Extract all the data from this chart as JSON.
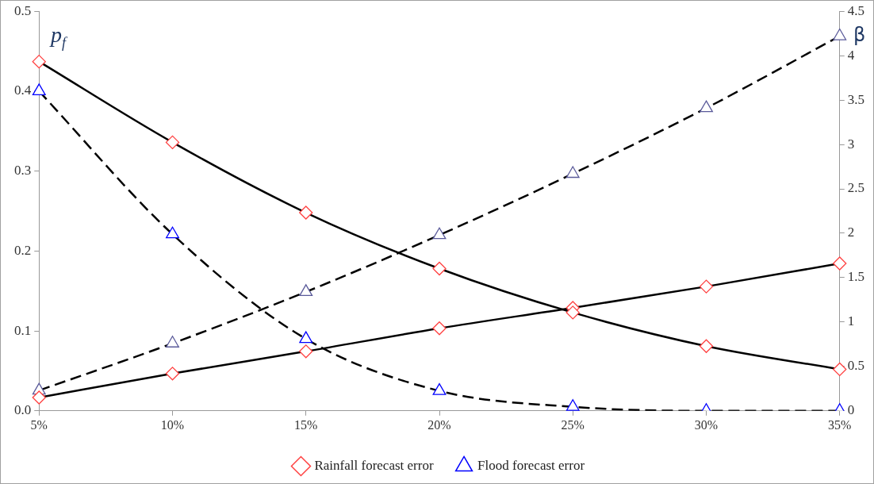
{
  "chart_data": {
    "type": "line",
    "ylabel": "p$_{f}$",
    "y2label": "β",
    "categories": [
      "5%",
      "10%",
      "15%",
      "20%",
      "25%",
      "30%",
      "35%"
    ],
    "series": [
      {
        "name": "Rainfall forecast error",
        "color": "#000000",
        "colors": [
          "#ff4040",
          "#ff4040",
          "#ff4040",
          "#ff4040",
          "#ff4040",
          "#ff4040",
          "#ff4040"
        ],
        "marker": "diamond",
        "line_style": "solid",
        "values": [
          0.437,
          0.336,
          0.248,
          0.178,
          0.123,
          0.081,
          0.052
        ]
      },
      {
        "color": "#000000",
        "colors": [
          "#ff4040",
          "#ff4040",
          "#ff4040",
          "#ff4040",
          "#ff4040",
          "#ff4040",
          "#ff4040"
        ],
        "marker": "diamond",
        "line_style": "solid",
        "axis": "y2",
        "values": [
          0.15,
          0.42,
          0.67,
          0.93,
          1.16,
          1.4,
          1.66
        ]
      },
      {
        "name": "Flood forecast error",
        "color": "#000000",
        "colors": [
          "#0000ff",
          "#0000ff",
          "#0000ff",
          "#0000ff",
          "#0000ff",
          "#0000ff",
          "#0000ff"
        ],
        "marker": "triangle",
        "line_style": "dashed",
        "values": [
          0.4,
          0.221,
          0.09,
          0.025,
          0.005,
          0.0,
          0.0
        ]
      },
      {
        "color": "#000000",
        "colors": [
          "#5a5a9a",
          "#5a5a9a",
          "#5a5a9a",
          "#5a5a9a",
          "#5a5a9a",
          "#5a5a9a",
          "#5a5a9a"
        ],
        "marker": "triangle",
        "line_style": "dashed",
        "axis": "y2",
        "values": [
          0.23,
          0.76,
          1.34,
          1.98,
          2.67,
          3.41,
          4.22
        ]
      }
    ],
    "ylim": [
      0,
      0.5
    ],
    "yticks": [
      {
        "value": 0,
        "label": "0.0"
      },
      0.1,
      0.2,
      0.3,
      0.4,
      0.5
    ],
    "y2lim": [
      0,
      4.5
    ],
    "y2ticks": [
      0,
      0.5,
      1,
      1.5,
      2,
      2.5,
      3,
      3.5,
      4,
      4.5
    ],
    "grid": false,
    "legend": "bottom"
  }
}
